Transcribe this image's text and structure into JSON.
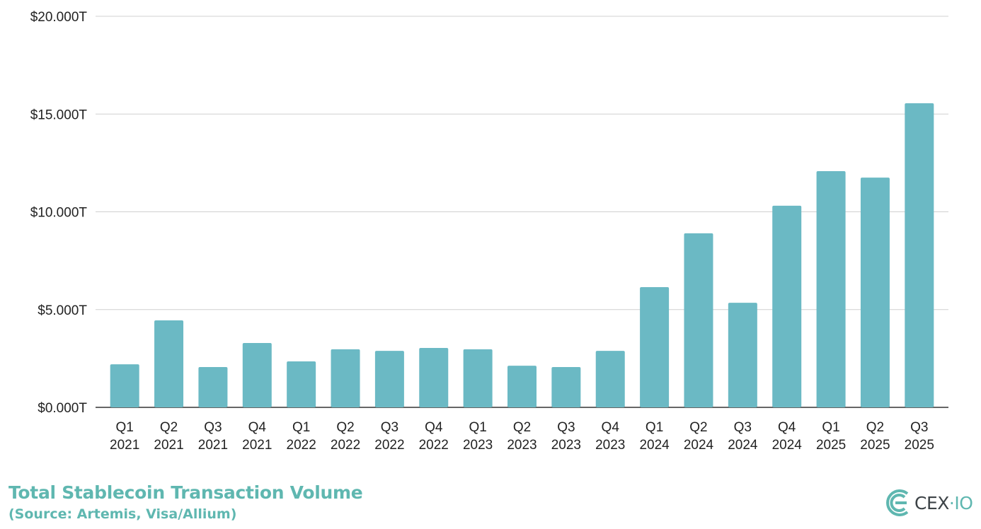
{
  "chart_data": {
    "type": "bar",
    "title": "Total Stablecoin Transaction Volume",
    "subtitle": "(Source: Artemis, Visa/Allium)",
    "categories": [
      [
        "Q1",
        "2021"
      ],
      [
        "Q2",
        "2021"
      ],
      [
        "Q3",
        "2021"
      ],
      [
        "Q4",
        "2021"
      ],
      [
        "Q1",
        "2022"
      ],
      [
        "Q2",
        "2022"
      ],
      [
        "Q3",
        "2022"
      ],
      [
        "Q4",
        "2022"
      ],
      [
        "Q1",
        "2023"
      ],
      [
        "Q2",
        "2023"
      ],
      [
        "Q3",
        "2023"
      ],
      [
        "Q4",
        "2023"
      ],
      [
        "Q1",
        "2024"
      ],
      [
        "Q2",
        "2024"
      ],
      [
        "Q3",
        "2024"
      ],
      [
        "Q4",
        "2024"
      ],
      [
        "Q1",
        "2025"
      ],
      [
        "Q2",
        "2025"
      ],
      [
        "Q3",
        "2025"
      ]
    ],
    "values": [
      2.2,
      4.45,
      2.06,
      3.29,
      2.35,
      2.97,
      2.89,
      3.04,
      2.97,
      2.13,
      2.06,
      2.89,
      6.15,
      8.9,
      5.35,
      10.31,
      12.08,
      11.75,
      15.55
    ],
    "unit": "trillion USD",
    "ylim": [
      0,
      20
    ],
    "yticks": [
      "$0.000T",
      "$5.000T",
      "$10.000T",
      "$15.000T",
      "$20.000T"
    ],
    "ytick_values": [
      0,
      5,
      10,
      15,
      20
    ],
    "grid": true,
    "legend": "none",
    "bar_color": "#6bb9c4"
  },
  "brand": {
    "logo_text_main": "CEX",
    "logo_text_sep": "·",
    "logo_text_io": "IO",
    "color": "#5fb7b0"
  }
}
